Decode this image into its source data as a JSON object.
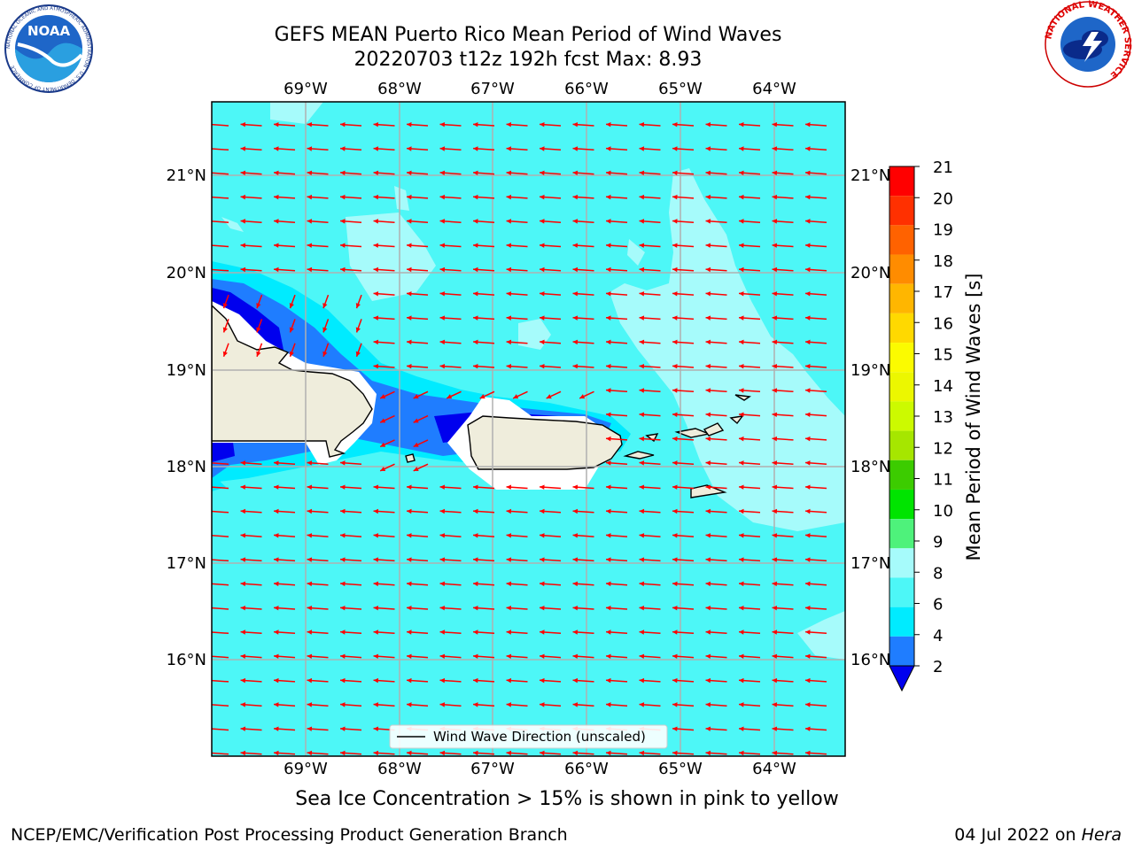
{
  "header": {
    "title_line1": "GEFS MEAN Puerto Rico Mean Period of Wind Waves",
    "title_line2": "20220703 t12z 192h fcst   Max: 8.93"
  },
  "logos": {
    "left": "NOAA",
    "left_ring": "NATIONAL OCEANIC AND ATMOSPHERIC ADMINISTRATION · U.S. DEPARTMENT OF COMMERCE",
    "right_ring": "NATIONAL WEATHER SERVICE"
  },
  "map": {
    "lon_labels": [
      "69°W",
      "68°W",
      "67°W",
      "66°W",
      "65°W",
      "64°W"
    ],
    "lat_labels": [
      "21°N",
      "20°N",
      "19°N",
      "18°N",
      "17°N",
      "16°N"
    ],
    "legend_label": "Wind Wave Direction (unscaled)",
    "colors": {
      "ocean": "#4df7f7",
      "ocean_light": "#a6fbfb",
      "shallow": "#00ebff",
      "mid_blue": "#1f7dff",
      "deep_blue": "#0000ee",
      "land": "#efeddc",
      "arrow": "#ff0000",
      "grid": "#b0b0b0"
    }
  },
  "colorbar": {
    "label": "Mean Period of Wind Waves [s]",
    "ticks": [
      "2",
      "4",
      "6",
      "8",
      "9",
      "10",
      "11",
      "12",
      "13",
      "14",
      "15",
      "16",
      "17",
      "18",
      "19",
      "20",
      "21"
    ],
    "colors": [
      "#1f7dff",
      "#00ebff",
      "#4df7f7",
      "#a6fbfb",
      "#4ef27b",
      "#00e400",
      "#3ccc00",
      "#a6e600",
      "#ccfa00",
      "#ecf700",
      "#fbfb00",
      "#ffd900",
      "#ffb600",
      "#ff8c00",
      "#ff6200",
      "#ff3000",
      "#ff0000"
    ],
    "under_color": "#0000ee"
  },
  "footer": {
    "note": "Sea Ice Concentration > 15% is shown in pink to yellow",
    "credit_left": "NCEP/EMC/Verification Post Processing Product Generation Branch",
    "date": "04 Jul 2022 on ",
    "host": "Hera"
  }
}
